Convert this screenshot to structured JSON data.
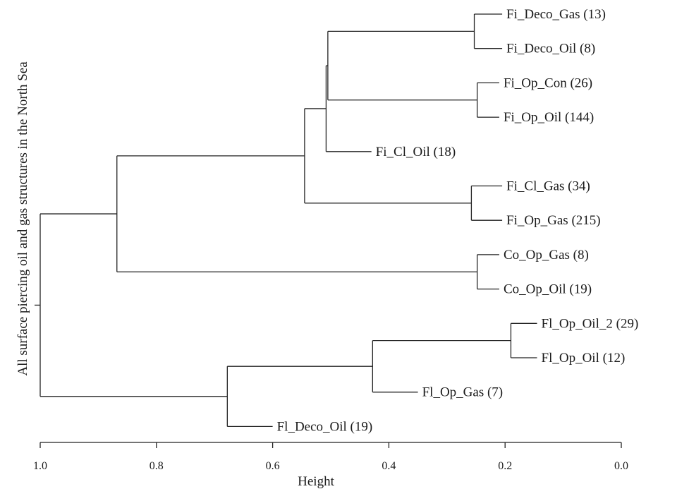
{
  "dendrogram": {
    "title": "",
    "side_label": "All surface piercing oil and gas structures in the North Sea",
    "x_axis": {
      "label": "Height",
      "range": [
        1.0,
        0.0
      ],
      "ticks": [
        "1.0",
        "0.8",
        "0.6",
        "0.4",
        "0.2",
        "0.0"
      ],
      "tick_values": [
        1.0,
        0.8,
        0.6,
        0.4,
        0.2,
        0.0
      ]
    },
    "leaves": [
      {
        "label": "Fi_Deco_Gas (13)",
        "height": 0.205
      },
      {
        "label": "Fi_Deco_Oil (8)",
        "height": 0.205
      },
      {
        "label": "Fi_Op_Con (26)",
        "height": 0.21
      },
      {
        "label": "Fi_Op_Oil (144)",
        "height": 0.21
      },
      {
        "label": "Fi_Cl_Oil (18)",
        "height": 0.43
      },
      {
        "label": "Fi_Cl_Gas (34)",
        "height": 0.205
      },
      {
        "label": "Fi_Op_Gas (215)",
        "height": 0.205
      },
      {
        "label": "Co_Op_Gas (8)",
        "height": 0.21
      },
      {
        "label": "Co_Op_Oil (19)",
        "height": 0.21
      },
      {
        "label": "Fl_Op_Oil_2 (29)",
        "height": 0.145
      },
      {
        "label": "Fl_Op_Oil (12)",
        "height": 0.145
      },
      {
        "label": "Fl_Op_Gas (7)",
        "height": 0.35
      },
      {
        "label": "Fl_Deco_Oil (19)",
        "height": 0.6
      }
    ],
    "merges": [
      {
        "id": "m1",
        "height": 0.253,
        "children": [
          "L0",
          "L1"
        ]
      },
      {
        "id": "m2",
        "height": 0.248,
        "children": [
          "L2",
          "L3"
        ]
      },
      {
        "id": "m3",
        "height": 0.505,
        "children": [
          "m1",
          "m2"
        ]
      },
      {
        "id": "m4",
        "height": 0.508,
        "children": [
          "m3",
          "L4"
        ]
      },
      {
        "id": "m5",
        "height": 0.258,
        "children": [
          "L5",
          "L6"
        ]
      },
      {
        "id": "m6",
        "height": 0.545,
        "children": [
          "m4",
          "m5"
        ]
      },
      {
        "id": "m7",
        "height": 0.248,
        "children": [
          "L7",
          "L8"
        ]
      },
      {
        "id": "m8",
        "height": 0.868,
        "children": [
          "m6",
          "m7"
        ]
      },
      {
        "id": "m9",
        "height": 0.19,
        "children": [
          "L9",
          "L10"
        ]
      },
      {
        "id": "m10",
        "height": 0.428,
        "children": [
          "m9",
          "L11"
        ]
      },
      {
        "id": "m11",
        "height": 0.678,
        "children": [
          "m10",
          "L12"
        ]
      },
      {
        "id": "m12",
        "height": 1.0,
        "children": [
          "m8",
          "m11"
        ]
      }
    ]
  }
}
